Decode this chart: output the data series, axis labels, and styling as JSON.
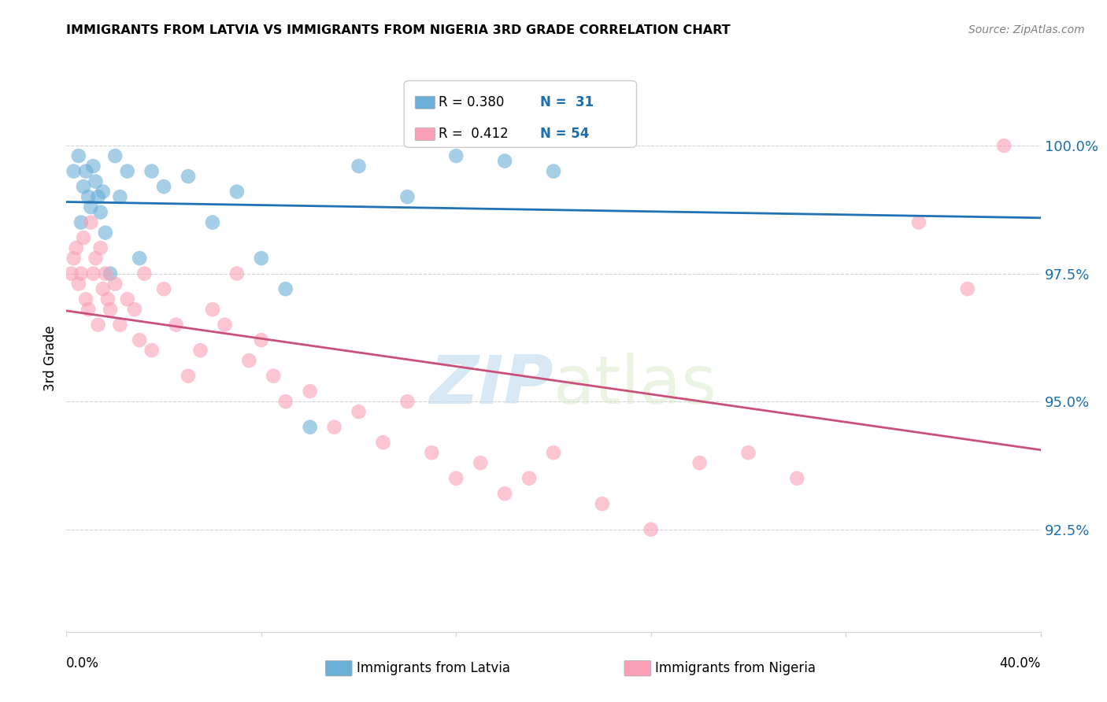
{
  "title": "IMMIGRANTS FROM LATVIA VS IMMIGRANTS FROM NIGERIA 3RD GRADE CORRELATION CHART",
  "source": "Source: ZipAtlas.com",
  "ylabel": "3rd Grade",
  "y_ticks": [
    92.5,
    95.0,
    97.5,
    100.0
  ],
  "y_tick_labels": [
    "92.5%",
    "95.0%",
    "97.5%",
    "100.0%"
  ],
  "x_min": 0.0,
  "x_max": 40.0,
  "y_min": 90.5,
  "y_max": 101.2,
  "watermark_zip": "ZIP",
  "watermark_atlas": "atlas",
  "legend_r_latvia": "R = 0.380",
  "legend_n_latvia": "N =  31",
  "legend_r_nigeria": "R =  0.412",
  "legend_n_nigeria": "N = 54",
  "color_latvia": "#6baed6",
  "color_nigeria": "#fa9fb5",
  "color_line_latvia": "#2171b5",
  "color_line_nigeria": "#c9507a",
  "color_blue_text": "#1a6faf",
  "latvia_x": [
    0.3,
    0.5,
    0.6,
    0.7,
    0.8,
    0.9,
    1.0,
    1.1,
    1.2,
    1.3,
    1.4,
    1.5,
    1.6,
    1.8,
    2.0,
    2.2,
    2.5,
    3.0,
    3.5,
    4.0,
    5.0,
    6.0,
    7.0,
    8.0,
    9.0,
    10.0,
    12.0,
    14.0,
    16.0,
    18.0,
    20.0
  ],
  "latvia_y": [
    99.5,
    99.8,
    98.5,
    99.2,
    99.5,
    99.0,
    98.8,
    99.6,
    99.3,
    99.0,
    98.7,
    99.1,
    98.3,
    97.5,
    99.8,
    99.0,
    99.5,
    97.8,
    99.5,
    99.2,
    99.4,
    98.5,
    99.1,
    97.8,
    97.2,
    94.5,
    99.6,
    99.0,
    99.8,
    99.7,
    99.5
  ],
  "nigeria_x": [
    0.2,
    0.3,
    0.4,
    0.5,
    0.6,
    0.7,
    0.8,
    0.9,
    1.0,
    1.1,
    1.2,
    1.3,
    1.4,
    1.5,
    1.6,
    1.7,
    1.8,
    2.0,
    2.2,
    2.5,
    2.8,
    3.0,
    3.2,
    3.5,
    4.0,
    4.5,
    5.0,
    5.5,
    6.0,
    6.5,
    7.0,
    7.5,
    8.0,
    8.5,
    9.0,
    10.0,
    11.0,
    12.0,
    13.0,
    14.0,
    15.0,
    16.0,
    17.0,
    18.0,
    19.0,
    20.0,
    22.0,
    24.0,
    26.0,
    28.0,
    30.0,
    35.0,
    37.0,
    38.5
  ],
  "nigeria_y": [
    97.5,
    97.8,
    98.0,
    97.3,
    97.5,
    98.2,
    97.0,
    96.8,
    98.5,
    97.5,
    97.8,
    96.5,
    98.0,
    97.2,
    97.5,
    97.0,
    96.8,
    97.3,
    96.5,
    97.0,
    96.8,
    96.2,
    97.5,
    96.0,
    97.2,
    96.5,
    95.5,
    96.0,
    96.8,
    96.5,
    97.5,
    95.8,
    96.2,
    95.5,
    95.0,
    95.2,
    94.5,
    94.8,
    94.2,
    95.0,
    94.0,
    93.5,
    93.8,
    93.2,
    93.5,
    94.0,
    93.0,
    92.5,
    93.8,
    94.0,
    93.5,
    98.5,
    97.2,
    100.0
  ]
}
